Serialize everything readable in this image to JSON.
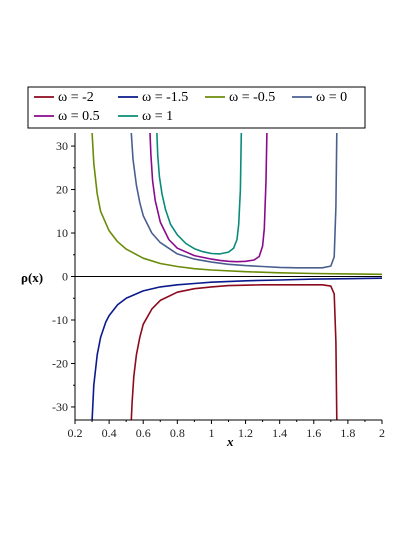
{
  "chart_data": {
    "type": "line",
    "title": "",
    "xlabel": "x",
    "ylabel": "ρ(x)",
    "xlim": [
      0.2,
      2
    ],
    "ylim": [
      -33,
      33
    ],
    "x_ticks": [
      "0.2",
      "0.4",
      "0.6",
      "0.8",
      "1",
      "1.2",
      "1.4",
      "1.6",
      "1.8",
      "2"
    ],
    "y_ticks": [
      "30",
      "20",
      "10",
      "0",
      "-10",
      "-20",
      "-30"
    ],
    "legend_position": "top",
    "grid": false,
    "series": [
      {
        "name": "ω = -2",
        "color": "#8b0a1e",
        "x": [
          0.53,
          0.535,
          0.545,
          0.56,
          0.58,
          0.6,
          0.65,
          0.7,
          0.8,
          0.9,
          1.0,
          1.1,
          1.2,
          1.3,
          1.4,
          1.5,
          1.6,
          1.65,
          1.7,
          1.72,
          1.73,
          1.735
        ],
        "y": [
          -33,
          -29,
          -23,
          -18,
          -14,
          -11,
          -7.5,
          -5.5,
          -3.6,
          -2.8,
          -2.4,
          -2.1,
          -2.0,
          -1.9,
          -1.9,
          -1.9,
          -1.9,
          -1.9,
          -2.2,
          -4,
          -15,
          -33
        ]
      },
      {
        "name": "ω = -1.5",
        "color": "#0a1a8b",
        "x": [
          0.3,
          0.31,
          0.33,
          0.35,
          0.38,
          0.4,
          0.45,
          0.5,
          0.6,
          0.7,
          0.8,
          0.9,
          1.0,
          1.2,
          1.4,
          1.6,
          1.8,
          2.0
        ],
        "y": [
          -33,
          -25,
          -18,
          -14,
          -10.5,
          -9,
          -6.5,
          -5,
          -3.3,
          -2.4,
          -1.9,
          -1.6,
          -1.3,
          -1.0,
          -0.8,
          -0.6,
          -0.5,
          -0.4
        ]
      },
      {
        "name": "ω = -0.5",
        "color": "#6b8b0a",
        "x": [
          0.3,
          0.31,
          0.33,
          0.35,
          0.4,
          0.45,
          0.5,
          0.6,
          0.7,
          0.8,
          0.9,
          1.0,
          1.2,
          1.4,
          1.6,
          1.8,
          2.0
        ],
        "y": [
          33,
          26,
          19,
          15,
          10.5,
          8,
          6.3,
          4.2,
          3.0,
          2.3,
          1.8,
          1.5,
          1.1,
          0.85,
          0.7,
          0.6,
          0.5
        ]
      },
      {
        "name": "ω = 0",
        "color": "#4b5f8f",
        "x": [
          0.53,
          0.54,
          0.56,
          0.58,
          0.6,
          0.65,
          0.7,
          0.8,
          0.9,
          1.0,
          1.1,
          1.2,
          1.3,
          1.4,
          1.5,
          1.6,
          1.65,
          1.7,
          1.72,
          1.73,
          1.735
        ],
        "y": [
          33,
          27,
          21,
          17,
          14,
          10,
          7.8,
          5.2,
          4.0,
          3.3,
          2.8,
          2.5,
          2.3,
          2.1,
          2.0,
          2.0,
          2.0,
          2.4,
          4.5,
          16,
          33
        ]
      },
      {
        "name": "ω = 0.5",
        "color": "#8b0a8b",
        "x": [
          0.64,
          0.645,
          0.655,
          0.67,
          0.7,
          0.75,
          0.8,
          0.9,
          1.0,
          1.05,
          1.1,
          1.15,
          1.2,
          1.25,
          1.28,
          1.3,
          1.31,
          1.32,
          1.325
        ],
        "y": [
          33,
          28,
          22,
          17.5,
          12.5,
          8.5,
          6.5,
          4.8,
          4.0,
          3.7,
          3.5,
          3.4,
          3.5,
          3.8,
          4.6,
          7,
          11,
          22,
          33
        ]
      },
      {
        "name": "ω = 1",
        "color": "#0a8b7a",
        "x": [
          0.68,
          0.685,
          0.695,
          0.71,
          0.73,
          0.76,
          0.8,
          0.85,
          0.9,
          0.95,
          1.0,
          1.05,
          1.1,
          1.13,
          1.15,
          1.16,
          1.17,
          1.175
        ],
        "y": [
          33,
          28,
          23,
          19,
          15.5,
          12,
          9.6,
          7.6,
          6.4,
          5.7,
          5.3,
          5.2,
          5.6,
          6.5,
          8.5,
          12,
          20,
          33
        ]
      }
    ]
  }
}
